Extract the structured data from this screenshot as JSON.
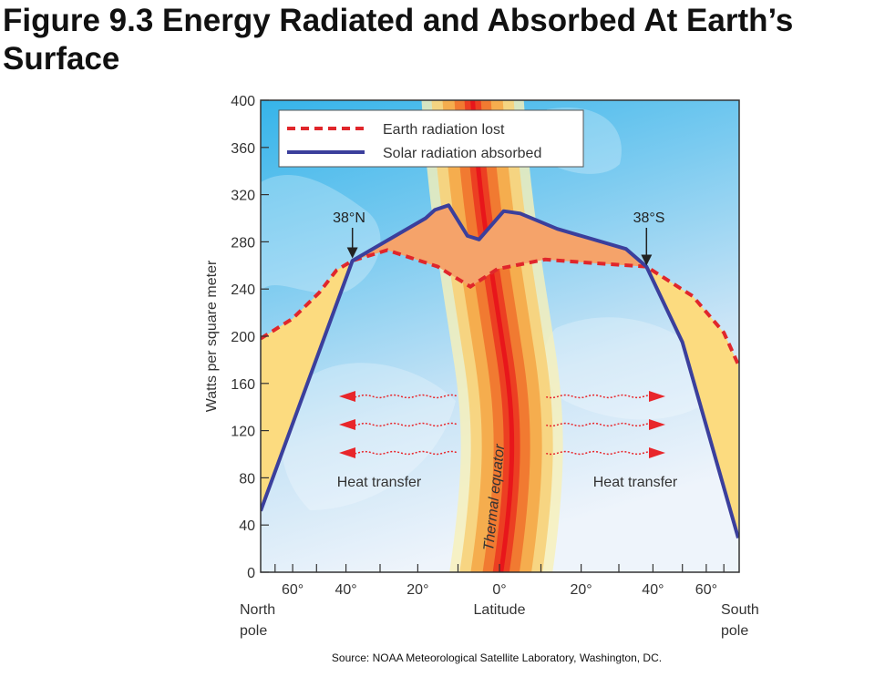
{
  "title": "Figure 9.3 Energy Radiated and Absorbed At Earth’s Surface",
  "source": "Source: NOAA Meteorological Satellite Laboratory, Washington, DC.",
  "chart_data": {
    "type": "line",
    "title": "",
    "xlabel": "Latitude",
    "ylabel": "Watts per square meter",
    "x_scale": "sine of latitude (equal-area)",
    "xlim": [
      90,
      -90
    ],
    "ylim": [
      0,
      400
    ],
    "y_ticks": [
      0,
      40,
      80,
      120,
      160,
      200,
      240,
      280,
      320,
      360,
      400
    ],
    "x_ticks": [
      {
        "lat": 60,
        "label": "60°"
      },
      {
        "lat": 40,
        "label": "40°"
      },
      {
        "lat": 20,
        "label": "20°"
      },
      {
        "lat": 0,
        "label": "0°"
      },
      {
        "lat": -20,
        "label": "20°"
      },
      {
        "lat": -40,
        "label": "40°"
      },
      {
        "lat": -60,
        "label": "60°"
      }
    ],
    "x_end_labels": {
      "left": [
        "North",
        "pole"
      ],
      "right": [
        "South",
        "pole"
      ]
    },
    "legend": {
      "placement": "top-left"
    },
    "series": [
      {
        "name": "Earth radiation lost",
        "style": "dashed",
        "color": "#e0262b",
        "points": [
          [
            90,
            198
          ],
          [
            60,
            215
          ],
          [
            49,
            237
          ],
          [
            43,
            256
          ],
          [
            38,
            264
          ],
          [
            28,
            273
          ],
          [
            15,
            259
          ],
          [
            7,
            242
          ],
          [
            0.5,
            257
          ],
          [
            -11,
            265
          ],
          [
            -23,
            262
          ],
          [
            -38,
            259
          ],
          [
            -54,
            234
          ],
          [
            -70,
            203
          ],
          [
            -90,
            176
          ]
        ]
      },
      {
        "name": "Solar radiation absorbed",
        "style": "solid",
        "color": "#3b3f9c",
        "points": [
          [
            90,
            52
          ],
          [
            38,
            264
          ],
          [
            18,
            300
          ],
          [
            15.7,
            307
          ],
          [
            12.3,
            311
          ],
          [
            7.7,
            285
          ],
          [
            4.9,
            282
          ],
          [
            -1,
            306
          ],
          [
            -5,
            304
          ],
          [
            -14,
            291
          ],
          [
            -32,
            274
          ],
          [
            -38,
            259
          ],
          [
            -50,
            195
          ],
          [
            -90,
            29
          ]
        ]
      }
    ],
    "annotations": [
      {
        "text": "38°N",
        "lat": 38,
        "type": "arrow"
      },
      {
        "text": "38°S",
        "lat": -38,
        "type": "arrow"
      },
      {
        "text": "Heat transfer",
        "side": "north"
      },
      {
        "text": "Heat transfer",
        "side": "south"
      },
      {
        "text": "Thermal equator"
      }
    ],
    "fill_colors": {
      "surplus": "#f5a36a",
      "deficit": "#fcdb7f"
    }
  }
}
